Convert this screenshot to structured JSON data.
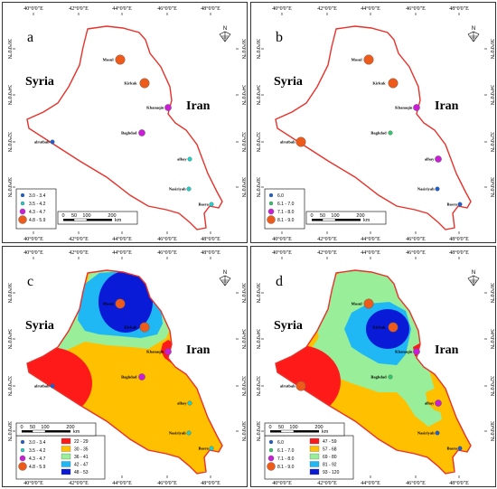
{
  "lon_labels": [
    "40°0'0\"E",
    "42°0'0\"E",
    "44°0'0\"E",
    "46°0'0\"E",
    "48°0'0\"E"
  ],
  "lat_labels": [
    "36°0'0\"N",
    "34°0'0\"N",
    "32°0'0\"N",
    "30°0'0\"N"
  ],
  "countries": {
    "syria": "Syria",
    "iran": "Iran"
  },
  "north": "N",
  "scale": {
    "labels": [
      "0",
      "50",
      "100",
      "200"
    ],
    "unit": "km"
  },
  "colors": {
    "boundary": "#e8312a",
    "zone_red": "#ff1a1a",
    "zone_orange": "#ffc000",
    "zone_green": "#99ee99",
    "zone_lightblue": "#1fb8f5",
    "zone_blue": "#0a1bd8",
    "dot_cyan": "#1fd1c8",
    "dot_green": "#2ec96b",
    "dot_purple": "#c81fd6",
    "dot_orange": "#ee5a1a",
    "dot_blue": "#1a5fd6"
  },
  "panels": [
    {
      "id": "a",
      "letter": "a",
      "cities": [
        {
          "name": "Mosul",
          "color": "dot_orange",
          "size": "large"
        },
        {
          "name": "Kirkuk",
          "color": "dot_orange",
          "size": "large"
        },
        {
          "name": "Khanaqin",
          "color": "dot_purple",
          "size": "medium"
        },
        {
          "name": "Baghdad",
          "color": "dot_purple",
          "size": "medium"
        },
        {
          "name": "alrutbah",
          "color": "dot_blue",
          "size": "small"
        },
        {
          "name": "alhay",
          "color": "dot_cyan",
          "size": "small"
        },
        {
          "name": "Nasiriyah",
          "color": "dot_cyan",
          "size": "small"
        },
        {
          "name": "Basra",
          "color": "dot_cyan",
          "size": "small"
        }
      ],
      "point_legend": [
        {
          "label": "3.0 - 3.4",
          "color": "dot_blue",
          "size": "small"
        },
        {
          "label": "3.5 - 4.2",
          "color": "dot_cyan",
          "size": "small"
        },
        {
          "label": "4.3 - 4.7",
          "color": "dot_purple",
          "size": "medium"
        },
        {
          "label": "4.8 - 5.9",
          "color": "dot_orange",
          "size": "large"
        }
      ],
      "zone_legend": []
    },
    {
      "id": "b",
      "letter": "b",
      "cities": [
        {
          "name": "Mosul",
          "color": "dot_orange",
          "size": "large"
        },
        {
          "name": "Kirkuk",
          "color": "dot_orange",
          "size": "large"
        },
        {
          "name": "Khanaqin",
          "color": "dot_purple",
          "size": "medium"
        },
        {
          "name": "Baghdad",
          "color": "dot_green",
          "size": "small"
        },
        {
          "name": "alrutbah",
          "color": "dot_orange",
          "size": "large"
        },
        {
          "name": "alhay",
          "color": "dot_purple",
          "size": "medium"
        },
        {
          "name": "Nasiriyah",
          "color": "dot_blue",
          "size": "small"
        },
        {
          "name": "Basra",
          "color": "dot_blue",
          "size": "small"
        }
      ],
      "point_legend": [
        {
          "label": "6.0",
          "color": "dot_blue",
          "size": "small"
        },
        {
          "label": "6.1 - 7.0",
          "color": "dot_green",
          "size": "small"
        },
        {
          "label": "7.1 - 8.0",
          "color": "dot_purple",
          "size": "medium"
        },
        {
          "label": "8.1 - 9.0",
          "color": "dot_orange",
          "size": "large"
        }
      ],
      "zone_legend": []
    },
    {
      "id": "c",
      "letter": "c",
      "cities": [
        {
          "name": "Mosul",
          "color": "dot_orange",
          "size": "large"
        },
        {
          "name": "Kirkuk",
          "color": "dot_orange",
          "size": "large"
        },
        {
          "name": "Khanaqin",
          "color": "dot_purple",
          "size": "medium"
        },
        {
          "name": "Baghdad",
          "color": "dot_purple",
          "size": "medium"
        },
        {
          "name": "alrutbah",
          "color": "dot_blue",
          "size": "small"
        },
        {
          "name": "alhay",
          "color": "dot_cyan",
          "size": "small"
        },
        {
          "name": "Nasiriyah",
          "color": "dot_cyan",
          "size": "small"
        },
        {
          "name": "Basra",
          "color": "dot_cyan",
          "size": "small"
        }
      ],
      "point_legend": [
        {
          "label": "3.0 - 3.4",
          "color": "dot_blue",
          "size": "small"
        },
        {
          "label": "3.5 - 4.2",
          "color": "dot_cyan",
          "size": "small"
        },
        {
          "label": "4.3 - 4.7",
          "color": "dot_purple",
          "size": "medium"
        },
        {
          "label": "4.8 - 5.9",
          "color": "dot_orange",
          "size": "large"
        }
      ],
      "zone_legend": [
        {
          "label": "22 - 29",
          "color": "zone_red"
        },
        {
          "label": "30 - 35",
          "color": "zone_orange"
        },
        {
          "label": "36 - 41",
          "color": "zone_green"
        },
        {
          "label": "42 - 47",
          "color": "zone_lightblue"
        },
        {
          "label": "48 - 53",
          "color": "zone_blue"
        }
      ]
    },
    {
      "id": "d",
      "letter": "d",
      "cities": [
        {
          "name": "Mosul",
          "color": "dot_orange",
          "size": "large"
        },
        {
          "name": "Kirkuk",
          "color": "dot_orange",
          "size": "large"
        },
        {
          "name": "Khanaqin",
          "color": "dot_purple",
          "size": "medium"
        },
        {
          "name": "Baghdad",
          "color": "dot_green",
          "size": "small"
        },
        {
          "name": "alrutbah",
          "color": "dot_orange",
          "size": "large"
        },
        {
          "name": "alhay",
          "color": "dot_purple",
          "size": "medium"
        },
        {
          "name": "Nasiriyah",
          "color": "dot_blue",
          "size": "small"
        },
        {
          "name": "Basra",
          "color": "dot_blue",
          "size": "small"
        }
      ],
      "point_legend": [
        {
          "label": "6.0",
          "color": "dot_blue",
          "size": "small"
        },
        {
          "label": "6.1 - 7.0",
          "color": "dot_green",
          "size": "small"
        },
        {
          "label": "7.1 - 8.0",
          "color": "dot_purple",
          "size": "medium"
        },
        {
          "label": "8.1 - 9.0",
          "color": "dot_orange",
          "size": "large"
        }
      ],
      "zone_legend": [
        {
          "label": "47 - 59",
          "color": "zone_red"
        },
        {
          "label": "57 - 68",
          "color": "zone_orange"
        },
        {
          "label": "69 - 80",
          "color": "zone_green"
        },
        {
          "label": "81 - 92",
          "color": "zone_lightblue"
        },
        {
          "label": "93 - 120",
          "color": "zone_blue"
        }
      ]
    }
  ]
}
